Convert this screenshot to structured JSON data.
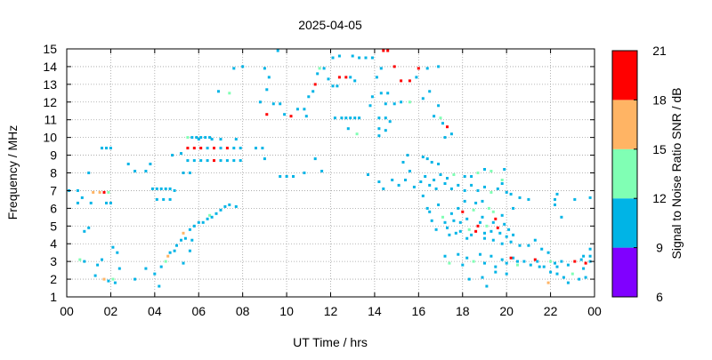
{
  "chart_data": {
    "type": "heatmap",
    "title": "2025-04-05",
    "xlabel": "UT Time / hrs",
    "ylabel": "Frequency / MHz",
    "xlim": [
      0,
      24
    ],
    "ylim": [
      1,
      15
    ],
    "xticks": [
      "00",
      "02",
      "04",
      "06",
      "08",
      "10",
      "12",
      "14",
      "16",
      "18",
      "20",
      "22",
      "00"
    ],
    "yticks": [
      "1",
      "2",
      "3",
      "4",
      "5",
      "6",
      "7",
      "8",
      "9",
      "10",
      "11",
      "12",
      "13",
      "14",
      "15"
    ],
    "grid": true,
    "colorbar": {
      "label": "Signal to Noise Ratio SNR / dB",
      "ticks": [
        "6",
        "9",
        "12",
        "15",
        "18",
        "21"
      ],
      "range": [
        6,
        21
      ],
      "bands": [
        {
          "from": 6,
          "to": 9,
          "color": "#8000ff"
        },
        {
          "from": 9,
          "to": 12,
          "color": "#00b4e6"
        },
        {
          "from": 12,
          "to": 15,
          "color": "#80ffb4"
        },
        {
          "from": 15,
          "to": 18,
          "color": "#ffb464"
        },
        {
          "from": 18,
          "to": 21,
          "color": "#ff0000"
        }
      ]
    },
    "points": [
      [
        0.1,
        7.0,
        10
      ],
      [
        0.5,
        7.0,
        10
      ],
      [
        0.7,
        6.6,
        10
      ],
      [
        0.5,
        6.3,
        10
      ],
      [
        0.8,
        4.7,
        10
      ],
      [
        1.0,
        4.9,
        10
      ],
      [
        1.1,
        6.3,
        10
      ],
      [
        1.0,
        8.0,
        10
      ],
      [
        1.2,
        6.9,
        16
      ],
      [
        1.5,
        6.9,
        16
      ],
      [
        1.7,
        6.9,
        19
      ],
      [
        1.9,
        6.9,
        13
      ],
      [
        1.8,
        6.3,
        10
      ],
      [
        2.0,
        6.3,
        10
      ],
      [
        1.6,
        9.4,
        10
      ],
      [
        1.8,
        9.4,
        10
      ],
      [
        2.0,
        9.4,
        10
      ],
      [
        0.6,
        3.1,
        13
      ],
      [
        0.8,
        3.0,
        10
      ],
      [
        1.3,
        2.2,
        10
      ],
      [
        1.4,
        2.8,
        10
      ],
      [
        1.6,
        3.1,
        10
      ],
      [
        1.7,
        2.0,
        16
      ],
      [
        1.9,
        1.9,
        10
      ],
      [
        2.1,
        2.0,
        13
      ],
      [
        2.2,
        1.8,
        10
      ],
      [
        2.1,
        3.8,
        10
      ],
      [
        2.3,
        3.5,
        10
      ],
      [
        2.4,
        2.6,
        10
      ],
      [
        3.1,
        2.0,
        10
      ],
      [
        2.8,
        8.5,
        10
      ],
      [
        3.1,
        8.1,
        10
      ],
      [
        3.6,
        8.1,
        10
      ],
      [
        3.8,
        8.5,
        10
      ],
      [
        3.9,
        7.1,
        10
      ],
      [
        4.1,
        7.1,
        10
      ],
      [
        4.3,
        7.1,
        10
      ],
      [
        4.5,
        7.1,
        10
      ],
      [
        4.7,
        7.1,
        10
      ],
      [
        4.9,
        7.0,
        10
      ],
      [
        4.1,
        6.5,
        10
      ],
      [
        4.4,
        6.5,
        10
      ],
      [
        4.7,
        6.5,
        10
      ],
      [
        3.6,
        2.6,
        10
      ],
      [
        4.0,
        2.3,
        10
      ],
      [
        4.2,
        1.6,
        10
      ],
      [
        4.3,
        2.7,
        10
      ],
      [
        4.5,
        3.0,
        13
      ],
      [
        4.6,
        3.3,
        16
      ],
      [
        4.7,
        3.5,
        10
      ],
      [
        4.9,
        3.6,
        10
      ],
      [
        5.0,
        3.9,
        10
      ],
      [
        5.2,
        4.2,
        10
      ],
      [
        5.3,
        4.6,
        16
      ],
      [
        5.4,
        4.3,
        10
      ],
      [
        5.6,
        4.8,
        10
      ],
      [
        5.8,
        5.0,
        10
      ],
      [
        6.0,
        5.2,
        10
      ],
      [
        6.2,
        5.2,
        10
      ],
      [
        6.4,
        5.4,
        10
      ],
      [
        6.5,
        5.6,
        13
      ],
      [
        6.6,
        5.5,
        10
      ],
      [
        6.8,
        5.7,
        10
      ],
      [
        7.0,
        5.9,
        10
      ],
      [
        7.2,
        6.1,
        10
      ],
      [
        7.4,
        6.2,
        10
      ],
      [
        7.7,
        6.1,
        10
      ],
      [
        5.7,
        4.2,
        10
      ],
      [
        5.6,
        3.6,
        10
      ],
      [
        5.3,
        2.9,
        10
      ],
      [
        4.8,
        9.0,
        10
      ],
      [
        5.2,
        9.1,
        10
      ],
      [
        5.3,
        8.0,
        10
      ],
      [
        5.6,
        8.0,
        10
      ],
      [
        5.5,
        10.0,
        13
      ],
      [
        5.7,
        10.0,
        10
      ],
      [
        5.9,
        10.0,
        10
      ],
      [
        6.1,
        10.0,
        10
      ],
      [
        6.3,
        10.0,
        10
      ],
      [
        6.5,
        10.0,
        10
      ],
      [
        5.5,
        9.4,
        19
      ],
      [
        5.8,
        9.4,
        19
      ],
      [
        6.1,
        9.4,
        19
      ],
      [
        6.4,
        9.4,
        10
      ],
      [
        6.7,
        9.4,
        19
      ],
      [
        7.0,
        9.4,
        10
      ],
      [
        7.3,
        9.4,
        19
      ],
      [
        7.6,
        9.4,
        10
      ],
      [
        7.9,
        9.4,
        10
      ],
      [
        8.6,
        9.4,
        10
      ],
      [
        8.9,
        9.4,
        10
      ],
      [
        5.5,
        8.7,
        10
      ],
      [
        5.8,
        8.7,
        10
      ],
      [
        6.1,
        8.7,
        10
      ],
      [
        6.4,
        8.7,
        10
      ],
      [
        6.7,
        8.7,
        19
      ],
      [
        7.0,
        8.7,
        10
      ],
      [
        7.3,
        8.7,
        10
      ],
      [
        7.6,
        8.7,
        10
      ],
      [
        7.9,
        8.7,
        10
      ],
      [
        9.0,
        8.8,
        10
      ],
      [
        6.0,
        9.9,
        10
      ],
      [
        6.6,
        9.9,
        10
      ],
      [
        7.0,
        9.9,
        10
      ],
      [
        7.7,
        9.9,
        10
      ],
      [
        6.9,
        12.6,
        10
      ],
      [
        7.4,
        12.5,
        13
      ],
      [
        7.6,
        13.9,
        10
      ],
      [
        8.0,
        14.0,
        10
      ],
      [
        8.8,
        12.0,
        10
      ],
      [
        9.1,
        12.7,
        10
      ],
      [
        9.2,
        13.4,
        10
      ],
      [
        9.0,
        13.9,
        10
      ],
      [
        9.4,
        11.9,
        10
      ],
      [
        9.7,
        11.9,
        10
      ],
      [
        9.6,
        14.9,
        10
      ],
      [
        9.1,
        11.3,
        19
      ],
      [
        9.9,
        11.3,
        10
      ],
      [
        10.2,
        11.2,
        19
      ],
      [
        10.5,
        11.6,
        10
      ],
      [
        10.8,
        11.6,
        10
      ],
      [
        10.9,
        11.2,
        10
      ],
      [
        11.0,
        12.3,
        10
      ],
      [
        11.2,
        12.6,
        10
      ],
      [
        9.7,
        7.8,
        10
      ],
      [
        10.0,
        7.8,
        10
      ],
      [
        10.3,
        7.8,
        10
      ],
      [
        10.8,
        8.0,
        10
      ],
      [
        11.3,
        8.8,
        10
      ],
      [
        11.6,
        8.1,
        10
      ],
      [
        11.3,
        13.0,
        19
      ],
      [
        11.4,
        13.6,
        10
      ],
      [
        11.5,
        13.9,
        13
      ],
      [
        11.7,
        13.9,
        10
      ],
      [
        11.9,
        13.3,
        10
      ],
      [
        12.1,
        12.9,
        10
      ],
      [
        12.3,
        12.9,
        10
      ],
      [
        12.4,
        13.4,
        19
      ],
      [
        12.7,
        13.4,
        19
      ],
      [
        12.9,
        13.4,
        10
      ],
      [
        13.1,
        13.2,
        10
      ],
      [
        12.1,
        14.5,
        10
      ],
      [
        12.4,
        14.6,
        10
      ],
      [
        13.0,
        14.6,
        10
      ],
      [
        13.3,
        14.5,
        10
      ],
      [
        13.6,
        14.5,
        10
      ],
      [
        13.9,
        14.5,
        10
      ],
      [
        12.2,
        11.1,
        10
      ],
      [
        12.5,
        11.1,
        10
      ],
      [
        12.7,
        11.1,
        10
      ],
      [
        12.9,
        11.1,
        10
      ],
      [
        13.1,
        11.1,
        10
      ],
      [
        13.3,
        11.1,
        10
      ],
      [
        12.8,
        10.5,
        10
      ],
      [
        13.2,
        10.2,
        13
      ],
      [
        13.8,
        11.8,
        10
      ],
      [
        13.9,
        12.3,
        10
      ],
      [
        14.1,
        13.4,
        10
      ],
      [
        14.3,
        13.9,
        10
      ],
      [
        14.4,
        14.9,
        19
      ],
      [
        14.6,
        14.9,
        19
      ],
      [
        14.9,
        14.0,
        19
      ],
      [
        14.3,
        12.5,
        10
      ],
      [
        14.6,
        12.5,
        10
      ],
      [
        14.5,
        11.9,
        10
      ],
      [
        14.9,
        11.9,
        10
      ],
      [
        15.2,
        12.0,
        10
      ],
      [
        15.6,
        12.0,
        13
      ],
      [
        14.2,
        11.1,
        10
      ],
      [
        14.5,
        11.1,
        10
      ],
      [
        14.7,
        10.9,
        10
      ],
      [
        14.2,
        10.5,
        10
      ],
      [
        14.5,
        10.4,
        10
      ],
      [
        14.2,
        10.1,
        10
      ],
      [
        15.2,
        13.2,
        19
      ],
      [
        15.6,
        13.2,
        19
      ],
      [
        15.9,
        13.4,
        10
      ],
      [
        16.0,
        13.9,
        19
      ],
      [
        16.4,
        13.9,
        10
      ],
      [
        16.2,
        12.2,
        10
      ],
      [
        16.5,
        12.6,
        10
      ],
      [
        16.9,
        14.0,
        10
      ],
      [
        16.7,
        11.2,
        10
      ],
      [
        17.0,
        11.1,
        13
      ],
      [
        17.1,
        10.8,
        10
      ],
      [
        17.3,
        10.6,
        19
      ],
      [
        17.5,
        10.2,
        10
      ],
      [
        17.2,
        10.0,
        10
      ],
      [
        16.9,
        11.8,
        10
      ],
      [
        15.5,
        9.0,
        10
      ],
      [
        15.3,
        8.6,
        10
      ],
      [
        15.6,
        8.1,
        10
      ],
      [
        16.2,
        8.9,
        10
      ],
      [
        16.4,
        8.8,
        10
      ],
      [
        16.6,
        8.6,
        10
      ],
      [
        16.9,
        8.5,
        10
      ],
      [
        16.3,
        7.8,
        10
      ],
      [
        16.7,
        7.6,
        10
      ],
      [
        17.0,
        7.9,
        10
      ],
      [
        17.3,
        7.7,
        10
      ],
      [
        17.6,
        7.9,
        13
      ],
      [
        18.1,
        7.8,
        10
      ],
      [
        18.4,
        7.8,
        10
      ],
      [
        18.7,
        8.0,
        13
      ],
      [
        19.0,
        8.2,
        10
      ],
      [
        19.3,
        8.1,
        13
      ],
      [
        13.7,
        7.9,
        10
      ],
      [
        14.2,
        7.5,
        10
      ],
      [
        14.4,
        7.1,
        10
      ],
      [
        14.8,
        7.6,
        10
      ],
      [
        15.1,
        7.3,
        10
      ],
      [
        15.4,
        7.6,
        10
      ],
      [
        15.8,
        7.2,
        10
      ],
      [
        16.1,
        7.5,
        10
      ],
      [
        16.5,
        7.3,
        10
      ],
      [
        16.8,
        7.1,
        10
      ],
      [
        17.2,
        7.4,
        10
      ],
      [
        17.5,
        7.1,
        10
      ],
      [
        17.8,
        7.3,
        10
      ],
      [
        18.1,
        7.0,
        10
      ],
      [
        18.4,
        7.3,
        10
      ],
      [
        18.7,
        7.0,
        10
      ],
      [
        19.0,
        7.2,
        10
      ],
      [
        19.3,
        6.9,
        13
      ],
      [
        19.6,
        7.1,
        10
      ],
      [
        19.8,
        7.4,
        10
      ],
      [
        20.0,
        6.9,
        10
      ],
      [
        16.2,
        6.7,
        10
      ],
      [
        16.4,
        6.0,
        10
      ],
      [
        16.6,
        5.3,
        10
      ],
      [
        16.8,
        4.8,
        10
      ],
      [
        17.1,
        5.5,
        13
      ],
      [
        17.3,
        4.9,
        10
      ],
      [
        17.5,
        5.7,
        10
      ],
      [
        17.7,
        4.6,
        10
      ],
      [
        17.9,
        5.2,
        10
      ],
      [
        18.1,
        6.4,
        10
      ],
      [
        18.3,
        4.8,
        13
      ],
      [
        18.5,
        5.9,
        13
      ],
      [
        18.7,
        5.0,
        19
      ],
      [
        18.9,
        5.5,
        10
      ],
      [
        19.0,
        4.6,
        10
      ],
      [
        19.2,
        6.0,
        13
      ],
      [
        19.4,
        5.2,
        10
      ],
      [
        19.6,
        4.9,
        19
      ],
      [
        19.8,
        5.6,
        10
      ],
      [
        20.0,
        4.4,
        10
      ],
      [
        16.5,
        5.8,
        10
      ],
      [
        16.9,
        6.2,
        10
      ],
      [
        17.2,
        5.2,
        10
      ],
      [
        17.6,
        5.3,
        10
      ],
      [
        17.8,
        6.0,
        10
      ],
      [
        18.0,
        5.8,
        19
      ],
      [
        18.2,
        5.4,
        10
      ],
      [
        18.4,
        4.5,
        10
      ],
      [
        18.6,
        6.3,
        10
      ],
      [
        18.8,
        5.2,
        10
      ],
      [
        19.1,
        5.0,
        13
      ],
      [
        19.3,
        4.7,
        10
      ],
      [
        19.5,
        5.4,
        19
      ],
      [
        19.7,
        4.6,
        10
      ],
      [
        19.9,
        5.1,
        10
      ],
      [
        20.1,
        4.8,
        10
      ],
      [
        20.3,
        4.5,
        10
      ],
      [
        19.4,
        5.8,
        13
      ],
      [
        18.9,
        6.4,
        10
      ],
      [
        17.4,
        4.5,
        10
      ],
      [
        17.9,
        4.7,
        10
      ],
      [
        18.2,
        4.3,
        10
      ],
      [
        18.6,
        4.7,
        19
      ],
      [
        19.0,
        4.3,
        10
      ],
      [
        19.4,
        4.2,
        10
      ],
      [
        19.8,
        4.0,
        10
      ],
      [
        20.2,
        4.1,
        10
      ],
      [
        20.6,
        3.9,
        10
      ],
      [
        21.0,
        3.9,
        10
      ],
      [
        21.3,
        4.2,
        10
      ],
      [
        21.6,
        3.7,
        10
      ],
      [
        21.9,
        3.5,
        10
      ],
      [
        21.3,
        3.1,
        19
      ],
      [
        17.2,
        3.3,
        10
      ],
      [
        17.4,
        2.9,
        13
      ],
      [
        17.8,
        3.4,
        10
      ],
      [
        18.0,
        2.8,
        10
      ],
      [
        18.2,
        3.2,
        10
      ],
      [
        18.5,
        3.0,
        13
      ],
      [
        18.8,
        3.4,
        10
      ],
      [
        19.0,
        2.9,
        10
      ],
      [
        19.3,
        3.3,
        10
      ],
      [
        19.5,
        2.7,
        10
      ],
      [
        19.8,
        3.1,
        10
      ],
      [
        20.0,
        2.9,
        10
      ],
      [
        20.3,
        3.2,
        10
      ],
      [
        20.5,
        2.8,
        13
      ],
      [
        20.8,
        3.0,
        10
      ],
      [
        21.1,
        2.8,
        10
      ],
      [
        21.4,
        3.0,
        10
      ],
      [
        21.7,
        2.7,
        10
      ],
      [
        22.0,
        3.0,
        13
      ],
      [
        22.2,
        2.9,
        10
      ],
      [
        22.5,
        3.0,
        10
      ],
      [
        22.8,
        2.8,
        10
      ],
      [
        23.1,
        3.0,
        19
      ],
      [
        23.4,
        3.1,
        10
      ],
      [
        23.6,
        2.9,
        19
      ],
      [
        23.8,
        3.0,
        10
      ],
      [
        23.5,
        3.3,
        10
      ],
      [
        23.8,
        3.3,
        10
      ],
      [
        23.5,
        2.6,
        10
      ],
      [
        23.8,
        3.7,
        10
      ],
      [
        20.2,
        3.2,
        19
      ],
      [
        20.5,
        3.0,
        10
      ],
      [
        21.9,
        1.8,
        16
      ],
      [
        22.0,
        2.4,
        10
      ],
      [
        22.3,
        2.3,
        10
      ],
      [
        22.6,
        2.1,
        10
      ],
      [
        22.8,
        1.8,
        10
      ],
      [
        23.3,
        2.0,
        10
      ],
      [
        23.0,
        2.3,
        13
      ],
      [
        23.6,
        2.1,
        10
      ],
      [
        21.5,
        2.7,
        10
      ],
      [
        22.3,
        2.7,
        10
      ],
      [
        18.3,
        2.0,
        10
      ],
      [
        18.9,
        2.1,
        10
      ],
      [
        19.5,
        2.4,
        10
      ],
      [
        19.1,
        1.6,
        10
      ],
      [
        20.0,
        2.3,
        10
      ],
      [
        22.2,
        6.5,
        10
      ],
      [
        22.5,
        5.5,
        10
      ],
      [
        22.2,
        6.2,
        10
      ],
      [
        22.3,
        6.8,
        10
      ],
      [
        23.1,
        6.5,
        10
      ],
      [
        23.8,
        6.6,
        10
      ],
      [
        21.0,
        6.5,
        10
      ],
      [
        20.6,
        6.6,
        10
      ],
      [
        20.2,
        6.8,
        10
      ],
      [
        20.3,
        6.0,
        10
      ],
      [
        19.8,
        7.6,
        13
      ],
      [
        19.9,
        8.2,
        10
      ]
    ]
  }
}
